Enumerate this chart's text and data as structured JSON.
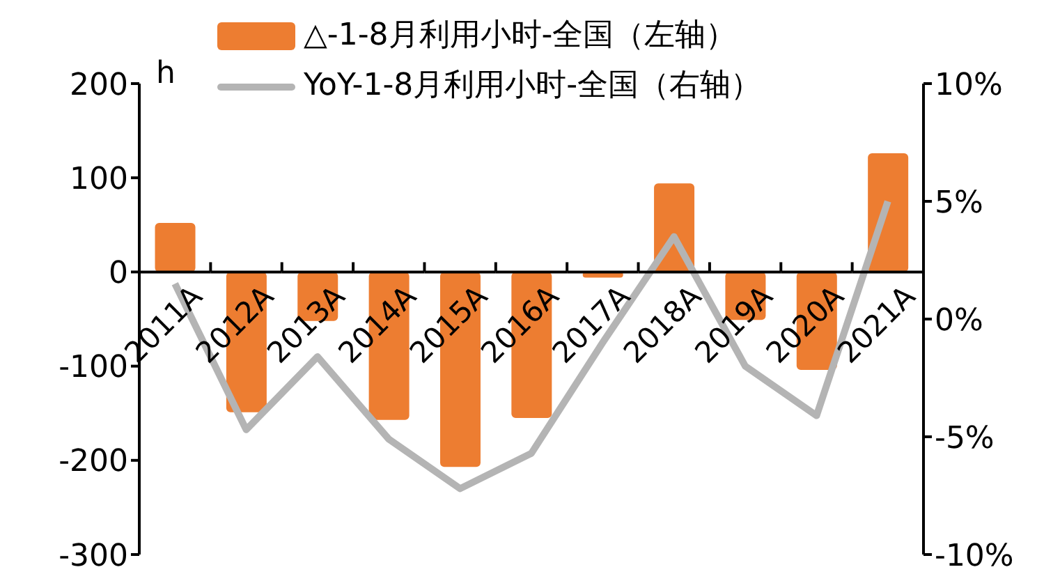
{
  "chart_data": {
    "type": "bar",
    "ylabel": "h",
    "categories": [
      "2011A",
      "2012A",
      "2013A",
      "2014A",
      "2015A",
      "2016A",
      "2017A",
      "2018A",
      "2019A",
      "2020A",
      "2021A"
    ],
    "series": [
      {
        "name": "△-1-8月利用小时-全国（左轴）",
        "color": "#ed7d31",
        "values": [
          52,
          -149,
          -52,
          -157,
          -207,
          -155,
          -6,
          94,
          -51,
          -104,
          126
        ]
      },
      {
        "name": "YoY-1-8月利用小时-全国（右轴）",
        "type": "line",
        "axis": "y2",
        "color": "#b4b4b4",
        "values": [
          1.5,
          -4.7,
          -1.6,
          -5.1,
          -7.2,
          -5.7,
          -1.0,
          3.5,
          -2.0,
          -4.1,
          5.0
        ]
      }
    ],
    "ylim": [
      -300,
      200
    ],
    "yticks": [
      -300,
      -200,
      -100,
      0,
      100,
      200
    ],
    "y2lim": [
      -10,
      10
    ],
    "y2ticks": [
      {
        "value": -10,
        "label": "-10%"
      },
      {
        "value": -5,
        "label": "-5%"
      },
      {
        "value": 0,
        "label": "0%"
      },
      {
        "value": 5,
        "label": "5%"
      },
      {
        "value": 10,
        "label": "10%"
      }
    ],
    "grid": false,
    "legend": "top",
    "marker": "none"
  }
}
